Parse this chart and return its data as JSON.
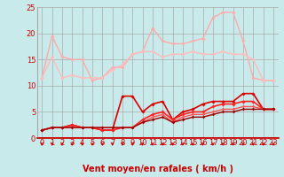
{
  "background_color": "#c8eaea",
  "grid_color": "#aaaaaa",
  "xlim": [
    -0.5,
    23.5
  ],
  "ylim": [
    0,
    25
  ],
  "xlabel": "Vent moyen/en rafales ( km/h )",
  "xlabel_color": "#cc0000",
  "xlabel_fontsize": 7,
  "xticks": [
    0,
    1,
    2,
    3,
    4,
    5,
    6,
    7,
    8,
    9,
    10,
    11,
    12,
    13,
    14,
    15,
    16,
    17,
    18,
    19,
    20,
    21,
    22,
    23
  ],
  "yticks": [
    0,
    5,
    10,
    15,
    20,
    25
  ],
  "tick_color": "#cc0000",
  "tick_fontsize": 6,
  "lines": [
    {
      "x": [
        0,
        1,
        2,
        3,
        4,
        5,
        6,
        7,
        8,
        9,
        10,
        11,
        12,
        13,
        14,
        15,
        16,
        17,
        18,
        19,
        20,
        21,
        22,
        23
      ],
      "y": [
        11.5,
        19.5,
        15.5,
        15,
        15,
        11,
        11.5,
        13.5,
        13.5,
        16,
        16.5,
        21,
        18.5,
        18,
        18,
        18.5,
        19,
        23,
        24,
        24,
        18.5,
        11.5,
        11,
        11
      ],
      "color": "#ffaaaa",
      "linewidth": 1.0,
      "marker": "D",
      "markersize": 2.0
    },
    {
      "x": [
        0,
        1,
        2,
        3,
        4,
        5,
        6,
        7,
        8,
        9,
        10,
        11,
        12,
        13,
        14,
        15,
        16,
        17,
        18,
        19,
        20,
        21,
        22,
        23
      ],
      "y": [
        11.5,
        15.5,
        11.5,
        12,
        11.5,
        11.5,
        11.5,
        13,
        14,
        16,
        16.5,
        16.5,
        15.5,
        16,
        16,
        16.5,
        16,
        16,
        16.5,
        16,
        16,
        15,
        11,
        11
      ],
      "color": "#ffbbbb",
      "linewidth": 1.0,
      "marker": "D",
      "markersize": 2.0
    },
    {
      "x": [
        0,
        1,
        2,
        3,
        4,
        5,
        6,
        7,
        8,
        9,
        10,
        11,
        12,
        13,
        14,
        15,
        16,
        17,
        18,
        19,
        20,
        21,
        22,
        23
      ],
      "y": [
        1.5,
        2,
        2,
        2.5,
        2,
        2,
        1.5,
        1.5,
        8,
        8,
        5,
        6.5,
        7,
        3.5,
        5,
        5.5,
        6.5,
        7,
        7,
        7,
        8.5,
        8.5,
        5.5,
        5.5
      ],
      "color": "#dd0000",
      "linewidth": 1.2,
      "marker": "D",
      "markersize": 2.0
    },
    {
      "x": [
        0,
        1,
        2,
        3,
        4,
        5,
        6,
        7,
        8,
        9,
        10,
        11,
        12,
        13,
        14,
        15,
        16,
        17,
        18,
        19,
        20,
        21,
        22,
        23
      ],
      "y": [
        1.5,
        2,
        2,
        2.5,
        2,
        2,
        1.5,
        1.5,
        2,
        2,
        3.5,
        4.5,
        5,
        3.5,
        4.5,
        5,
        5,
        6,
        6.5,
        6.5,
        7,
        7,
        5.5,
        5.5
      ],
      "color": "#ff2222",
      "linewidth": 1.2,
      "marker": "D",
      "markersize": 2.0
    },
    {
      "x": [
        0,
        1,
        2,
        3,
        4,
        5,
        6,
        7,
        8,
        9,
        10,
        11,
        12,
        13,
        14,
        15,
        16,
        17,
        18,
        19,
        20,
        21,
        22,
        23
      ],
      "y": [
        1.5,
        2,
        2,
        2,
        2,
        2,
        2,
        2,
        2,
        2,
        3,
        4,
        4.5,
        3,
        4,
        4.5,
        4.5,
        5,
        5.5,
        5.5,
        6,
        6,
        5.5,
        5.5
      ],
      "color": "#ff5555",
      "linewidth": 1.0,
      "marker": "D",
      "markersize": 1.8
    },
    {
      "x": [
        0,
        1,
        2,
        3,
        4,
        5,
        6,
        7,
        8,
        9,
        10,
        11,
        12,
        13,
        14,
        15,
        16,
        17,
        18,
        19,
        20,
        21,
        22,
        23
      ],
      "y": [
        1.5,
        2,
        2,
        2,
        2,
        2,
        2,
        2,
        2,
        2,
        3,
        3.5,
        4,
        3,
        3.5,
        4,
        4,
        4.5,
        5,
        5,
        5.5,
        5.5,
        5.5,
        5.5
      ],
      "color": "#990000",
      "linewidth": 1.0,
      "marker": "D",
      "markersize": 1.8
    }
  ],
  "arrow_color": "#cc0000"
}
